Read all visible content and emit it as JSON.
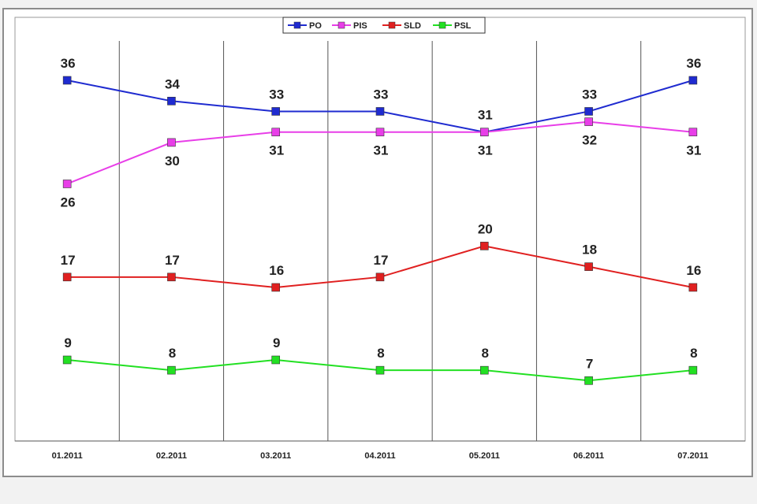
{
  "chart_data": {
    "type": "line",
    "categories": [
      "01.2011",
      "02.2011",
      "03.2011",
      "04.2011",
      "05.2011",
      "06.2011",
      "07.2011"
    ],
    "series": [
      {
        "name": "PO",
        "color": "#1f2bd0",
        "values": [
          36,
          34,
          33,
          33,
          31,
          33,
          36
        ],
        "label_pos": [
          "above",
          "above",
          "above",
          "above",
          "above",
          "above",
          "above"
        ]
      },
      {
        "name": "PIS",
        "color": "#e83ee8",
        "values": [
          26,
          30,
          31,
          31,
          31,
          32,
          31
        ],
        "label_pos": [
          "below",
          "below",
          "below",
          "below",
          "below",
          "below",
          "below"
        ]
      },
      {
        "name": "SLD",
        "color": "#e02020",
        "values": [
          17,
          17,
          16,
          17,
          20,
          18,
          16
        ],
        "label_pos": [
          "above",
          "above",
          "above",
          "above",
          "above",
          "above",
          "above"
        ]
      },
      {
        "name": "PSL",
        "color": "#22e022",
        "values": [
          9,
          8,
          9,
          8,
          8,
          7,
          8
        ],
        "label_pos": [
          "above",
          "above",
          "above",
          "above",
          "above",
          "above",
          "above"
        ]
      }
    ],
    "ylim": [
      0,
      40
    ],
    "grid": "vertical",
    "legend": "top-center",
    "title": "",
    "xlabel": "",
    "ylabel": ""
  }
}
